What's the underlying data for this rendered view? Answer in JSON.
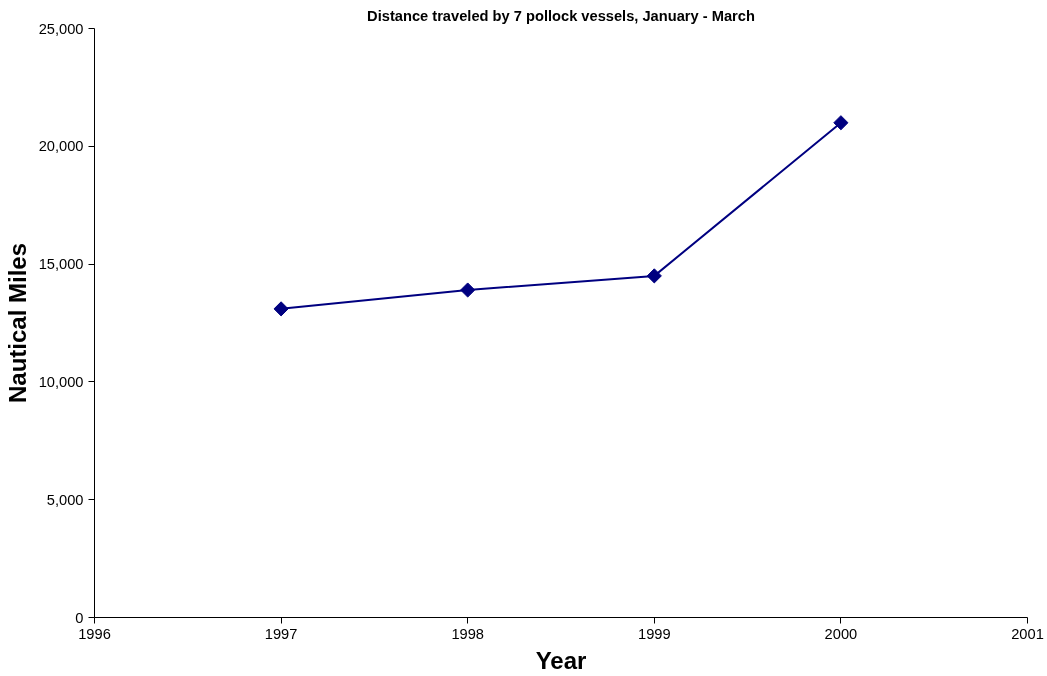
{
  "chart_data": {
    "type": "line",
    "title": "Distance traveled by 7 pollock vessels, January - March",
    "xlabel": "Year",
    "ylabel": "Nautical Miles",
    "x": [
      1997,
      1998,
      1999,
      2000
    ],
    "series": [
      {
        "color": "#000080",
        "values": [
          13100,
          13900,
          14500,
          21000
        ]
      }
    ],
    "xlim": [
      1996,
      2001
    ],
    "xticks": [
      1996,
      1997,
      1998,
      1999,
      2000,
      2001
    ],
    "ylim": [
      0,
      25000
    ],
    "yticks": [
      0,
      {
        "value": 5000,
        "label": "5,000"
      },
      {
        "value": 10000,
        "label": "10,000"
      },
      {
        "value": 15000,
        "label": "15,000"
      },
      {
        "value": 20000,
        "label": "20,000"
      },
      {
        "value": 25000,
        "label": "25,000"
      }
    ],
    "grid": false,
    "marker": "diamond",
    "line_style": "solid"
  }
}
